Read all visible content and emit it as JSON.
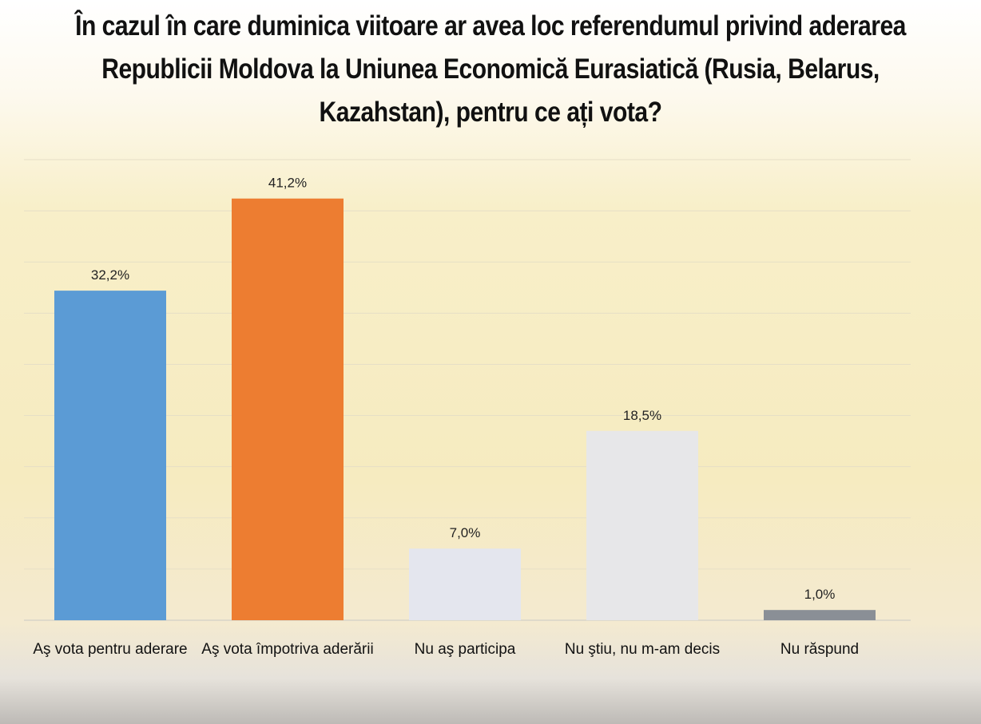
{
  "chart_data": {
    "type": "bar",
    "title_lines": [
      "În cazul în care duminica viitoare ar avea loc referendumul privind aderarea",
      "Republicii Moldova la Uniunea Economică Eurasiatică (Rusia, Belarus,",
      "Kazahstan), pentru ce ați vota?"
    ],
    "categories": [
      "Aş vota pentru aderare",
      "Aş vota împotriva aderării",
      "Nu aş participa",
      "Nu ştiu, nu m-am decis",
      "Nu răspund"
    ],
    "values": [
      32.2,
      41.2,
      7.0,
      18.5,
      1.0
    ],
    "data_labels": [
      "32,2%",
      "41,2%",
      "7,0%",
      "18,5%",
      "1,0%"
    ],
    "colors": [
      "#5b9bd5",
      "#ed7d31",
      "#e4e6ee",
      "#e7e7e9",
      "#8a8f96"
    ],
    "xlabel": "",
    "ylabel": "",
    "ylim": [
      0,
      45
    ],
    "grid": true,
    "legend": "none"
  }
}
